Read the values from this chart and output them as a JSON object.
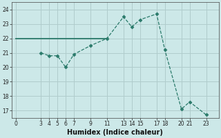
{
  "xlabel": "Humidex (Indice chaleur)",
  "line1_indices": [
    0,
    11
  ],
  "line1_y": [
    22,
    22
  ],
  "data_y": [
    21.0,
    20.8,
    20.8,
    20.0,
    20.9,
    21.5,
    22.0,
    23.5,
    22.8,
    23.3,
    23.7,
    21.2,
    17.1,
    17.6,
    16.7
  ],
  "color": "#2a7a6a",
  "bg_color": "#cce8e8",
  "grid_color": "#b0cccc",
  "ylim": [
    16.5,
    24.5
  ],
  "xlim": [
    -0.5,
    24.5
  ],
  "yticks": [
    17,
    18,
    19,
    20,
    21,
    22,
    23,
    24
  ],
  "xticks": [
    0,
    3,
    4,
    5,
    6,
    7,
    9,
    11,
    13,
    14,
    15,
    17,
    18,
    20,
    21,
    23
  ],
  "xlabel_fontsize": 7,
  "tick_fontsize": 5.5
}
